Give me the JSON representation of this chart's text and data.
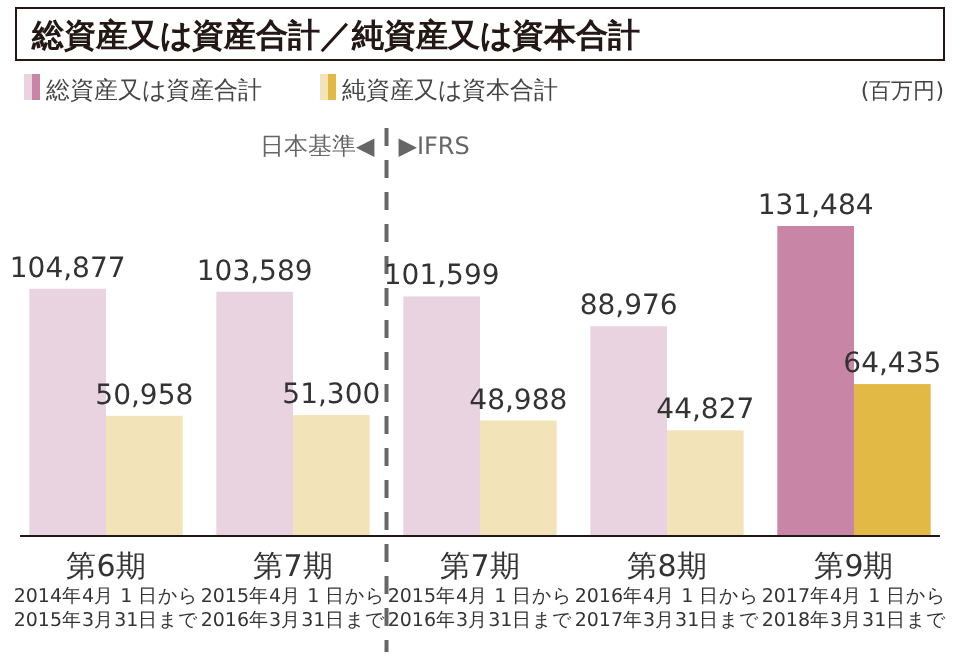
{
  "chart_data": {
    "type": "bar",
    "title": "総資産又は資産合計／純資産又は資本合計",
    "categories": [
      "第6期\n2014年4月 1 日から\n2015年3月31日まで",
      "第7期\n2015年4月 1 日から\n2016年3月31日まで",
      "第7期\n2015年4月 1 日から\n2016年3月31日まで",
      "第8期\n2016年4月 1 日から\n2017年3月31日まで",
      "第9期\n2017年4月 1 日から\n2018年3月31日まで"
    ],
    "series": [
      {
        "name": "総資産又は資産合計",
        "colors": [
          "#e9d3e0",
          "#e9d3e0",
          "#e9d3e0",
          "#e9d3e0",
          "#c985a6"
        ],
        "values": [
          104877,
          103589,
          101599,
          88976,
          131484
        ],
        "value_labels": [
          "104,877",
          "103,589",
          "101,599",
          "88,976",
          "131,484"
        ]
      },
      {
        "name": "純資産又は資本合計",
        "colors": [
          "#f3e3b8",
          "#f3e3b8",
          "#f3e3b8",
          "#f3e3b8",
          "#e2b944"
        ],
        "values": [
          50958,
          51300,
          48988,
          44827,
          64435
        ],
        "value_labels": [
          "50,958",
          "51,300",
          "48,988",
          "44,827",
          "64,435"
        ]
      }
    ],
    "legend": "top left",
    "annotations": [
      "(百万円)",
      "日本基準◀",
      "▶IFRS"
    ]
  }
}
